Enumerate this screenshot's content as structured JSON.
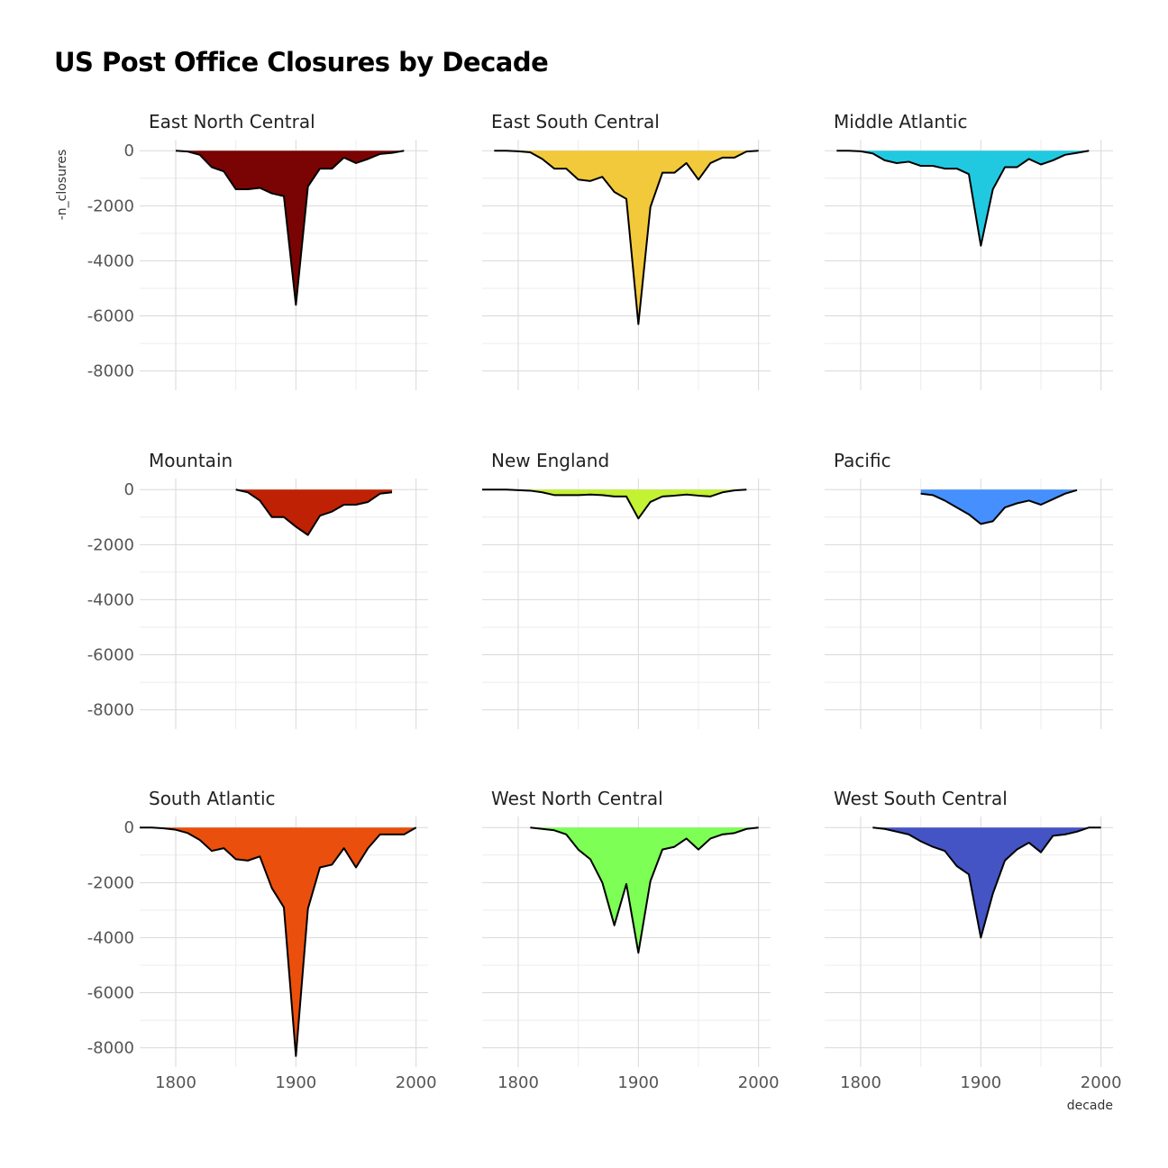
{
  "chart_data": {
    "type": "area",
    "title": "US Post Office Closures by Decade",
    "xlabel": "decade",
    "ylabel": "-n_closures",
    "xlim": [
      1770,
      2010
    ],
    "ylim": [
      -8700,
      400
    ],
    "x_ticks": [
      1800,
      1900,
      2000
    ],
    "y_ticks": [
      0,
      -2000,
      -4000,
      -6000,
      -8000
    ],
    "grid": true,
    "legend": "none",
    "facets": [
      {
        "name": "East North Central",
        "color": "#7a0403",
        "x": [
          1800,
          1810,
          1820,
          1830,
          1840,
          1850,
          1860,
          1870,
          1880,
          1890,
          1900,
          1910,
          1920,
          1930,
          1940,
          1950,
          1960,
          1970,
          1980,
          1990
        ],
        "values": [
          0,
          -30,
          -150,
          -600,
          -750,
          -1400,
          -1400,
          -1350,
          -1550,
          -1650,
          -5600,
          -1300,
          -650,
          -650,
          -250,
          -450,
          -300,
          -120,
          -80,
          0
        ]
      },
      {
        "name": "East South Central",
        "color": "#f2c93a",
        "x": [
          1780,
          1790,
          1800,
          1810,
          1820,
          1830,
          1840,
          1850,
          1860,
          1870,
          1880,
          1890,
          1900,
          1910,
          1920,
          1930,
          1940,
          1950,
          1960,
          1970,
          1980,
          1990,
          2000
        ],
        "values": [
          0,
          0,
          -20,
          -60,
          -300,
          -650,
          -650,
          -1050,
          -1100,
          -950,
          -1500,
          -1750,
          -6300,
          -2050,
          -800,
          -800,
          -450,
          -1050,
          -450,
          -250,
          -250,
          -30,
          0
        ]
      },
      {
        "name": "Middle Atlantic",
        "color": "#21c9e0",
        "x": [
          1780,
          1790,
          1800,
          1810,
          1820,
          1830,
          1840,
          1850,
          1860,
          1870,
          1880,
          1890,
          1900,
          1910,
          1920,
          1930,
          1940,
          1950,
          1960,
          1970,
          1980,
          1990
        ],
        "values": [
          0,
          0,
          -20,
          -100,
          -350,
          -450,
          -400,
          -550,
          -550,
          -650,
          -650,
          -850,
          -3450,
          -1400,
          -600,
          -600,
          -300,
          -500,
          -350,
          -150,
          -80,
          0
        ]
      },
      {
        "name": "Mountain",
        "color": "#bf2104",
        "x": [
          1850,
          1860,
          1870,
          1880,
          1890,
          1900,
          1910,
          1920,
          1930,
          1940,
          1950,
          1960,
          1970,
          1980
        ],
        "values": [
          0,
          -100,
          -400,
          -1000,
          -1000,
          -1350,
          -1650,
          -950,
          -800,
          -550,
          -550,
          -450,
          -150,
          -100
        ]
      },
      {
        "name": "New England",
        "color": "#c3f134",
        "x": [
          1770,
          1780,
          1790,
          1800,
          1810,
          1820,
          1830,
          1840,
          1850,
          1860,
          1870,
          1880,
          1890,
          1900,
          1910,
          1920,
          1930,
          1940,
          1950,
          1960,
          1970,
          1980,
          1990
        ],
        "values": [
          0,
          0,
          0,
          -20,
          -40,
          -100,
          -200,
          -200,
          -200,
          -180,
          -200,
          -250,
          -250,
          -1050,
          -450,
          -250,
          -220,
          -180,
          -220,
          -250,
          -100,
          -30,
          0
        ]
      },
      {
        "name": "Pacific",
        "color": "#4590fe",
        "x": [
          1850,
          1860,
          1870,
          1880,
          1890,
          1900,
          1910,
          1920,
          1930,
          1940,
          1950,
          1960,
          1970,
          1980
        ],
        "values": [
          -150,
          -200,
          -400,
          -650,
          -900,
          -1250,
          -1150,
          -650,
          -500,
          -400,
          -550,
          -350,
          -150,
          -20
        ]
      },
      {
        "name": "South Atlantic",
        "color": "#ea4f0d",
        "x": [
          1770,
          1780,
          1790,
          1800,
          1810,
          1820,
          1830,
          1840,
          1850,
          1860,
          1870,
          1880,
          1890,
          1900,
          1910,
          1920,
          1930,
          1940,
          1950,
          1960,
          1970,
          1980,
          1990,
          2000
        ],
        "values": [
          0,
          0,
          -30,
          -80,
          -200,
          -450,
          -850,
          -750,
          -1150,
          -1200,
          -1050,
          -2200,
          -2900,
          -8300,
          -2950,
          -1450,
          -1350,
          -750,
          -1450,
          -750,
          -250,
          -250,
          -250,
          0
        ]
      },
      {
        "name": "West North Central",
        "color": "#7dff56",
        "x": [
          1810,
          1820,
          1830,
          1840,
          1850,
          1860,
          1870,
          1880,
          1890,
          1900,
          1910,
          1920,
          1930,
          1940,
          1950,
          1960,
          1970,
          1980,
          1990,
          2000
        ],
        "values": [
          0,
          -50,
          -100,
          -250,
          -800,
          -1150,
          -2000,
          -3550,
          -2050,
          -4550,
          -1950,
          -800,
          -700,
          -400,
          -800,
          -400,
          -250,
          -200,
          -50,
          0
        ]
      },
      {
        "name": "West South Central",
        "color": "#4454c4",
        "x": [
          1810,
          1820,
          1830,
          1840,
          1850,
          1860,
          1870,
          1880,
          1890,
          1900,
          1910,
          1920,
          1930,
          1940,
          1950,
          1960,
          1970,
          1980,
          1990,
          2000
        ],
        "values": [
          0,
          -50,
          -150,
          -250,
          -500,
          -700,
          -850,
          -1400,
          -1700,
          -4000,
          -2400,
          -1200,
          -800,
          -550,
          -900,
          -300,
          -250,
          -150,
          0,
          0
        ]
      }
    ]
  }
}
